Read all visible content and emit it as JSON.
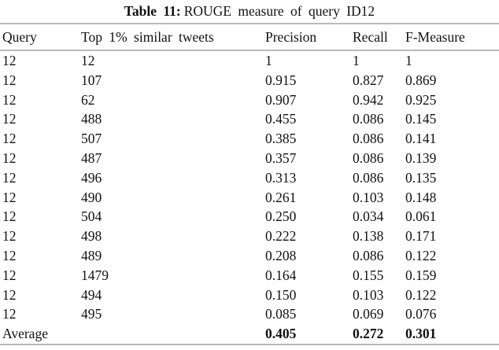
{
  "table": {
    "caption": {
      "label": "Table 11:",
      "text": "ROUGE measure of query ID12"
    },
    "columns": [
      "Query",
      "Top 1% similar tweets",
      "Precision",
      "Recall",
      "F-Measure"
    ],
    "rows": [
      [
        "12",
        "12",
        "1",
        "1",
        "1"
      ],
      [
        "12",
        "107",
        "0.915",
        "0.827",
        "0.869"
      ],
      [
        "12",
        "62",
        "0.907",
        "0.942",
        "0.925"
      ],
      [
        "12",
        "488",
        "0.455",
        "0.086",
        "0.145"
      ],
      [
        "12",
        "507",
        "0.385",
        "0.086",
        "0.141"
      ],
      [
        "12",
        "487",
        "0.357",
        "0.086",
        "0.139"
      ],
      [
        "12",
        "496",
        "0.313",
        "0.086",
        "0.135"
      ],
      [
        "12",
        "490",
        "0.261",
        "0.103",
        "0.148"
      ],
      [
        "12",
        "504",
        "0.250",
        "0.034",
        "0.061"
      ],
      [
        "12",
        "498",
        "0.222",
        "0.138",
        "0.171"
      ],
      [
        "12",
        "489",
        "0.208",
        "0.086",
        "0.122"
      ],
      [
        "12",
        "1479",
        "0.164",
        "0.155",
        "0.159"
      ],
      [
        "12",
        "494",
        "0.150",
        "0.103",
        "0.122"
      ],
      [
        "12",
        "495",
        "0.085",
        "0.069",
        "0.076"
      ]
    ],
    "average": [
      "Average",
      "",
      "0.405",
      "0.272",
      "0.301"
    ],
    "rule_color": "#b9b9b9",
    "text_color": "#111111"
  }
}
